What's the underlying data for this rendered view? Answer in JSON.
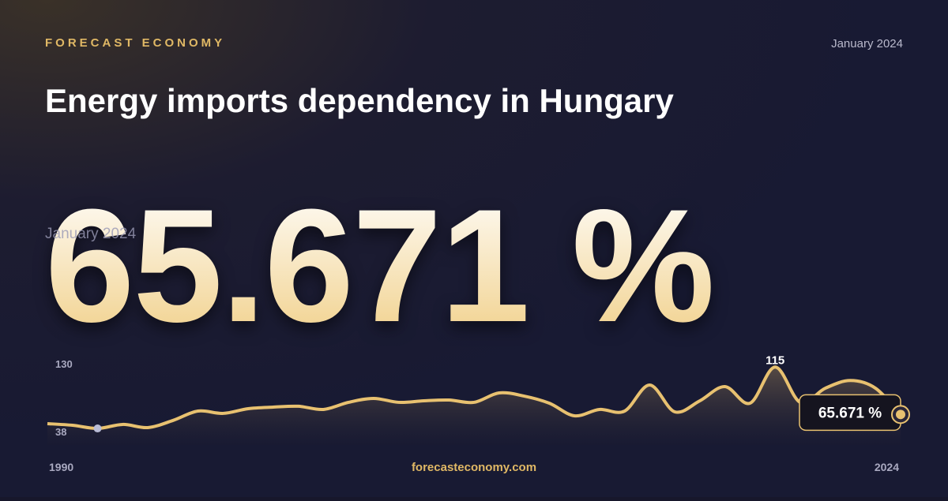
{
  "brand": "FORECAST ECONOMY",
  "date": "January 2024",
  "footer": "forecasteconomy.com",
  "chart_data": {
    "type": "line",
    "title": "Energy imports dependency in Hungary",
    "headline": {
      "value": 65.671,
      "label": "65.671 %"
    },
    "x": [
      1990,
      1991,
      1992,
      1993,
      1994,
      1995,
      1996,
      1997,
      1998,
      1999,
      2000,
      2001,
      2002,
      2003,
      2004,
      2005,
      2006,
      2007,
      2008,
      2009,
      2010,
      2011,
      2012,
      2013,
      2014,
      2015,
      2016,
      2017,
      2018,
      2019,
      2020,
      2021,
      2022,
      2023,
      2024
    ],
    "series": [
      {
        "color": "#e8c170",
        "values": [
          56.1,
          54.4,
          51.1,
          55.3,
          52,
          59.4,
          69.2,
          66.8,
          71.7,
          73.3,
          74.2,
          70.9,
          78.3,
          82.4,
          78.3,
          79.9,
          80.7,
          78.3,
          88.1,
          84.8,
          77.4,
          64.3,
          70.9,
          69.2,
          96.3,
          68.4,
          79.9,
          94.7,
          77.4,
          115,
          78.3,
          93,
          101,
          93,
          65.671
        ]
      }
    ],
    "xlim": [
      1990,
      2024
    ],
    "xticks": [
      1990,
      2024
    ],
    "ylim": [
      38,
      130
    ],
    "yticks": [
      38,
      130
    ]
  }
}
